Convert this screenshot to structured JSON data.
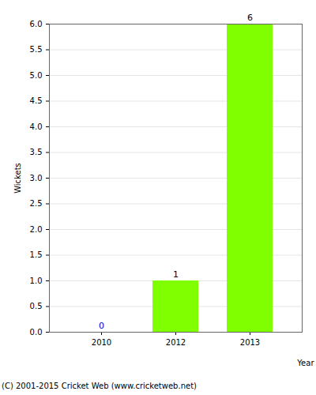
{
  "chart_data": {
    "type": "bar",
    "categories": [
      "2010",
      "2012",
      "2013"
    ],
    "values": [
      0,
      1,
      6
    ],
    "color": "#80ff00",
    "xlabel": "Year",
    "ylabel": "Wickets",
    "caption": "(C) 2001-2015 Cricket Web (www.cricketweb.net)",
    "ylim": [
      0,
      6
    ],
    "yticks": [
      {
        "value": 0,
        "label": "0.0"
      },
      {
        "value": 0.5,
        "label": "0.5"
      },
      {
        "value": 1,
        "label": "1.0"
      },
      {
        "value": 1.5,
        "label": "1.5"
      },
      {
        "value": 2,
        "label": "2.0"
      },
      {
        "value": 2.5,
        "label": "2.5"
      },
      {
        "value": 3,
        "label": "3.0"
      },
      {
        "value": 3.5,
        "label": "3.5"
      },
      {
        "value": 4,
        "label": "4.0"
      },
      {
        "value": 4.5,
        "label": "4.5"
      },
      {
        "value": 5,
        "label": "5.0"
      },
      {
        "value": 5.5,
        "label": "5.5"
      },
      {
        "value": 6,
        "label": "6.0"
      }
    ],
    "grid": true,
    "data_labels": true
  }
}
